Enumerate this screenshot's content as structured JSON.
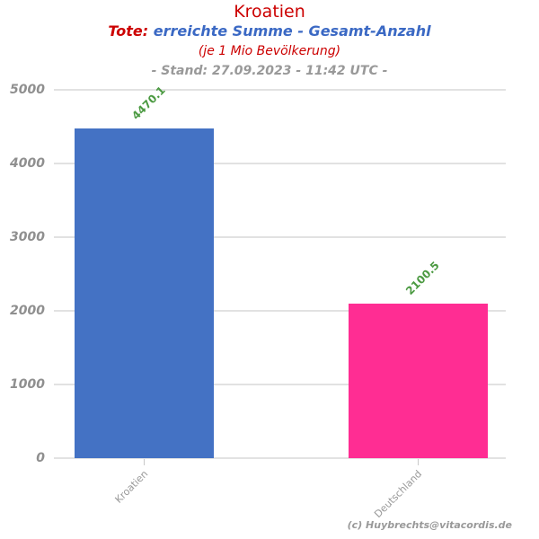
{
  "header": {
    "title": "Kroatien",
    "subtitle_prefix": "Tote:",
    "subtitle_main": "erreichte Summe - Gesamt-Anzahl",
    "unit_note": "(je 1 Mio Bevölkerung)",
    "status_line": "- Stand: 27.09.2023 - 11:42 UTC -"
  },
  "footer": {
    "copyright": "(c) Huybrechts@vitacordis.de"
  },
  "colors": {
    "title_red": "#cc0000",
    "subtitle_blue": "#3b69c4",
    "value_green": "#4c9a42",
    "axis_gray": "#8f8f8f",
    "label_gray": "#999999",
    "gridline": "#e2e2e2",
    "bar_blue": "#4472c4",
    "bar_pink": "#ff2d93"
  },
  "chart_data": {
    "type": "bar",
    "title": "Kroatien",
    "subtitle": "Tote: erreichte Summe - Gesamt-Anzahl (je 1 Mio Bevölkerung)",
    "status": "Stand: 27.09.2023 - 11:42 UTC",
    "categories": [
      "Kroatien",
      "Deutschland"
    ],
    "values": [
      4470.1,
      2100.5
    ],
    "value_labels": [
      "4470.1",
      "2100.5"
    ],
    "bar_colors": [
      "#4472c4",
      "#ff2d93"
    ],
    "xlabel": "",
    "ylabel": "",
    "ylim": [
      0,
      5000
    ],
    "ytick_step": 1000,
    "ytick_labels": [
      "0",
      "1000",
      "2000",
      "3000",
      "4000",
      "5000"
    ],
    "grid": "horizontal",
    "legend": "none"
  }
}
